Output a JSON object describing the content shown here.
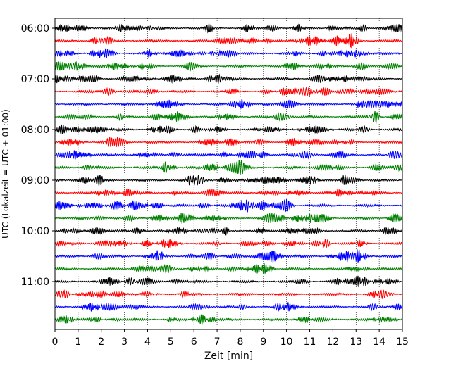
{
  "chart_data": {
    "type": "line",
    "title": "",
    "xlabel": "Zeit  [min]",
    "ylabel": "UTC (Lokalzeit = UTC + 01:00)",
    "xlim": [
      0,
      15
    ],
    "x_ticks": [
      "0",
      "1",
      "2",
      "3",
      "4",
      "5",
      "6",
      "7",
      "8",
      "9",
      "10",
      "11",
      "12",
      "13",
      "14",
      "15"
    ],
    "y_tick_labels": [
      "06:00",
      "07:00",
      "08:00",
      "09:00",
      "10:00",
      "11:00"
    ],
    "trace_interval_minutes": 15,
    "start_time": "06:00",
    "trace_count": 24,
    "trace_colors": [
      "#000000",
      "#ff0000",
      "#0000ff",
      "#008000"
    ],
    "vertical_grid": true,
    "grid_style": "dotted",
    "series_note": "Seismogram traces, one per 15-minute window from 06:00 to 11:45 UTC"
  }
}
